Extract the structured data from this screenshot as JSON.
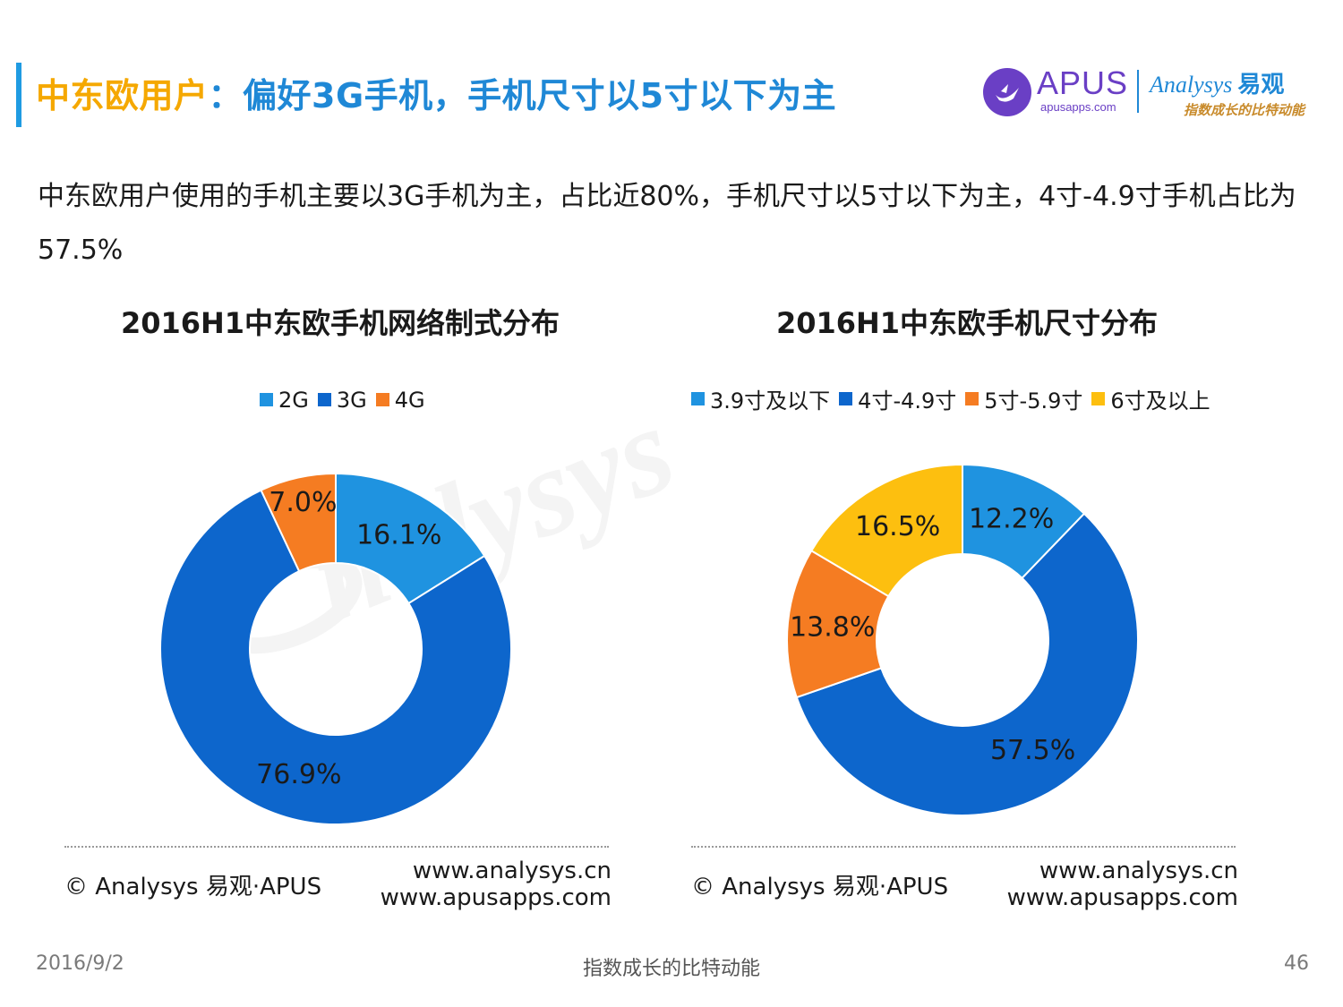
{
  "header": {
    "title_highlight": "中东欧用户",
    "title_main": "：偏好3G手机，手机尺寸以5寸以下为主"
  },
  "logos": {
    "apus_name": "APUS",
    "apus_url": "apusapps.com",
    "analysys_name": "Analysys",
    "analysys_cn": "易观",
    "analysys_slogan": "指数成长的比特动能"
  },
  "description": "中东欧用户使用的手机主要以3G手机为主，占比近80%，手机尺寸以5寸以下为主，4寸-4.9寸手机占比为57.5%",
  "colors": {
    "title_highlight": "#f5a800",
    "title_main": "#1f88d6",
    "light_blue": "#1f93e0",
    "dark_blue": "#0d66cc",
    "orange": "#f57c22",
    "yellow": "#fdbf0f"
  },
  "chart_data": [
    {
      "type": "pie",
      "style": "donut",
      "title": "2016H1中东欧手机网络制式分布",
      "labels": [
        "2G",
        "3G",
        "4G"
      ],
      "values": [
        16.1,
        76.9,
        7.0
      ],
      "value_labels": [
        "16.1%",
        "76.9%",
        "7.0%"
      ],
      "colors": [
        "#1f93e0",
        "#0d66cc",
        "#f57c22"
      ],
      "legend_position": "top"
    },
    {
      "type": "pie",
      "style": "donut",
      "title": "2016H1中东欧手机尺寸分布",
      "labels": [
        "3.9寸及以下",
        "4寸-4.9寸",
        "5寸-5.9寸",
        "6寸及以上"
      ],
      "values": [
        12.2,
        57.5,
        13.8,
        16.5
      ],
      "value_labels": [
        "12.2%",
        "57.5%",
        "13.8%",
        "16.5%"
      ],
      "colors": [
        "#1f93e0",
        "#0d66cc",
        "#f57c22",
        "#fdbf0f"
      ],
      "legend_position": "top"
    }
  ],
  "source": {
    "copyright": "© Analysys 易观·APUS",
    "url1": "www.analysys.cn",
    "url2": "www.apusapps.com"
  },
  "footer": {
    "date": "2016/9/2",
    "slogan": "指数成长的比特动能",
    "page": "46"
  }
}
